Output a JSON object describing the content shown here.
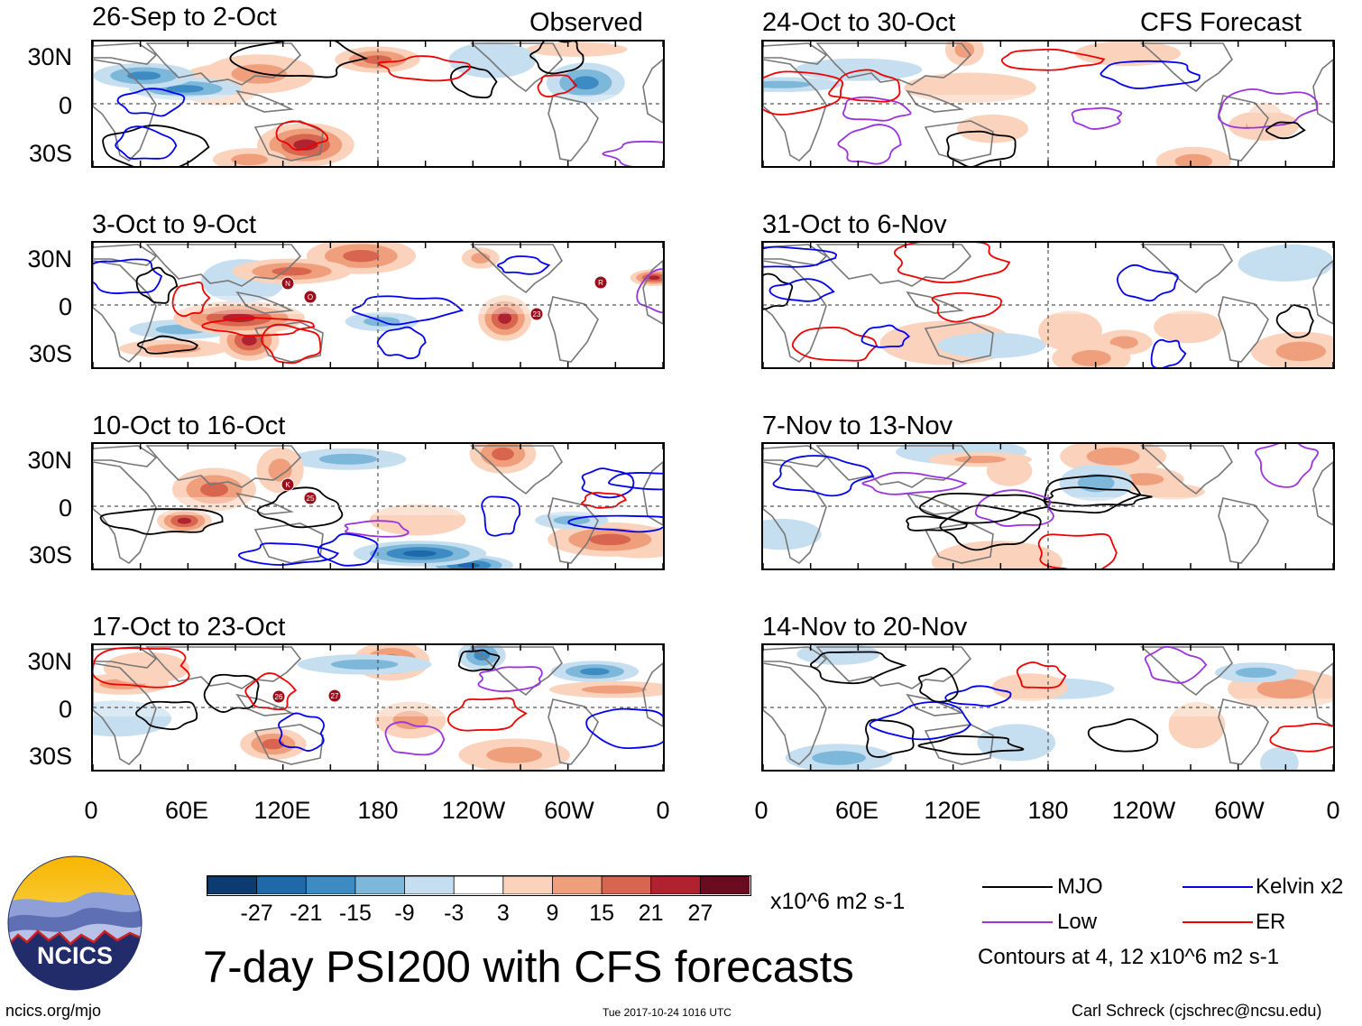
{
  "title": "7-day PSI200 with CFS forecasts",
  "column_labels": {
    "left": "Observed",
    "right": "CFS Forecast"
  },
  "panels_left": [
    {
      "title": "26-Sep to 2-Oct"
    },
    {
      "title": "3-Oct to 9-Oct"
    },
    {
      "title": "10-Oct to 16-Oct"
    },
    {
      "title": "17-Oct to 23-Oct"
    }
  ],
  "panels_right": [
    {
      "title": "24-Oct to 30-Oct"
    },
    {
      "title": "31-Oct to 6-Nov"
    },
    {
      "title": "7-Nov to 13-Nov"
    },
    {
      "title": "14-Nov to 20-Nov"
    }
  ],
  "chart_data": {
    "type": "heatmap",
    "title": "7-day PSI200 with CFS forecasts",
    "variable": "PSI200",
    "x_ticks": [
      "0",
      "60E",
      "120E",
      "180",
      "120W",
      "60W",
      "0"
    ],
    "y_ticks": [
      "30N",
      "0",
      "30S"
    ],
    "colorbar": {
      "labels": [
        "-27",
        "-21",
        "-15",
        "-9",
        "-3",
        "3",
        "9",
        "15",
        "21",
        "27"
      ],
      "colors": [
        "#0b3b6f",
        "#1f68aa",
        "#3d8bc3",
        "#7db7da",
        "#c6dff0",
        "#ffffff",
        "#fbd3bc",
        "#f09f7c",
        "#d8654f",
        "#b02230",
        "#6a0b1f"
      ],
      "units": "x10^6 m2 s-1"
    },
    "legend": [
      {
        "label": "MJO",
        "color": "#000000"
      },
      {
        "label": "Low",
        "color": "#9933dd"
      },
      {
        "label": "Kelvin x2",
        "color": "#0000ee"
      },
      {
        "label": "ER",
        "color": "#ee0000"
      }
    ],
    "contour_note": "Contours at 4, 12 x10^6 m2 s-1",
    "storm_markers": [
      {
        "panel": 1,
        "labels": [
          "23",
          "R",
          "N",
          "O"
        ]
      },
      {
        "panel": 2,
        "labels": [
          "K",
          "25"
        ]
      },
      {
        "panel": 3,
        "labels": [
          "26",
          "27"
        ]
      }
    ]
  },
  "footer": {
    "url": "ncics.org/mjo",
    "timestamp": "Tue 2017-10-24 1016 UTC",
    "credit": "Carl Schreck (cjschrec@ncsu.edu)",
    "logo_text": "NCICS"
  }
}
